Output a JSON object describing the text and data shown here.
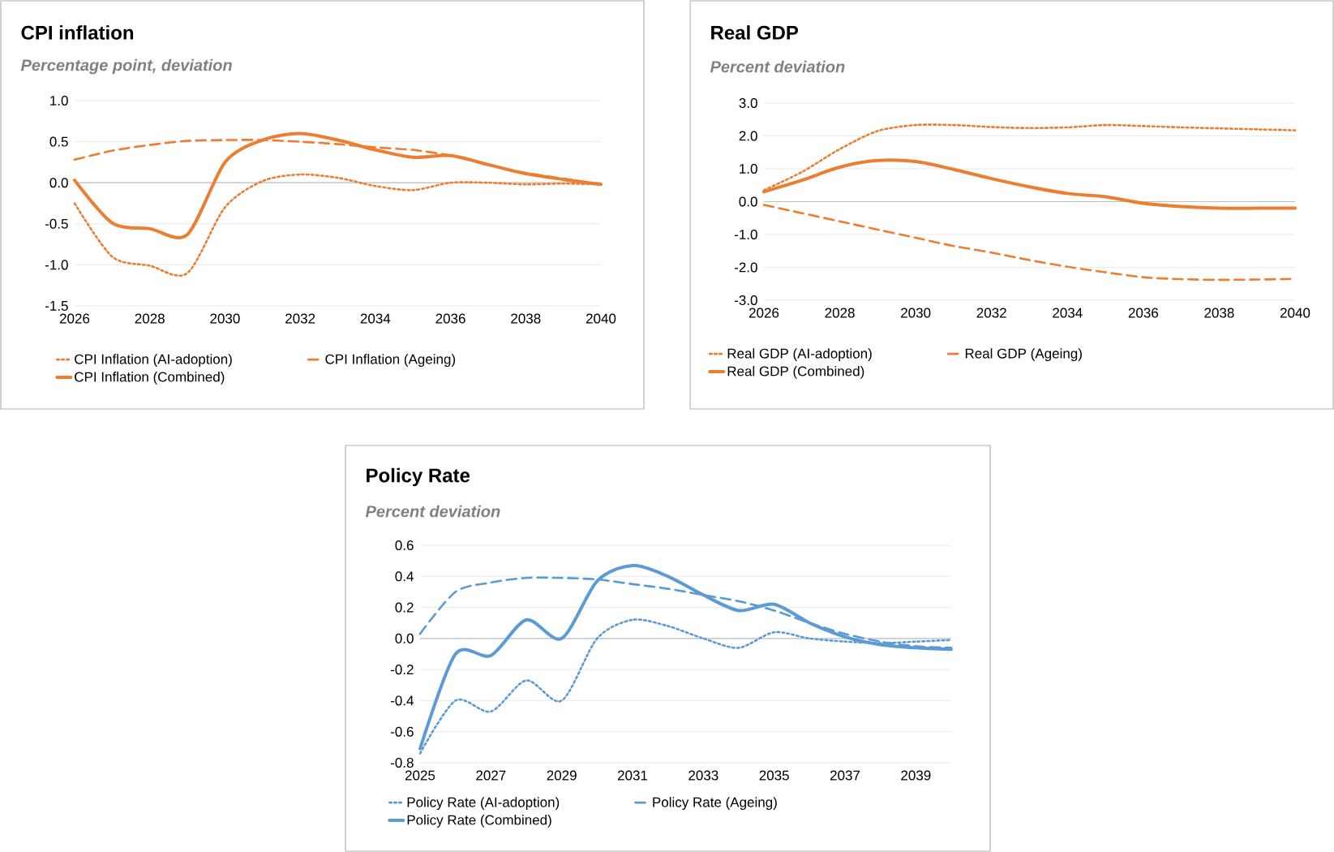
{
  "chart_data": [
    {
      "type": "line",
      "title": "CPI inflation",
      "subtitle": "Percentage point, deviation",
      "x": [
        2026,
        2027,
        2028,
        2029,
        2030,
        2031,
        2032,
        2033,
        2034,
        2035,
        2036,
        2037,
        2038,
        2039,
        2040
      ],
      "xlim": [
        2026,
        2040
      ],
      "xticks": [
        2026,
        2028,
        2030,
        2032,
        2034,
        2036,
        2038,
        2040
      ],
      "ylim": [
        -1.5,
        1.0
      ],
      "yticks": [
        {
          "value": -1.5,
          "label": "-1.5"
        },
        {
          "value": -1.0,
          "label": "-1.0"
        },
        {
          "value": -0.5,
          "label": "-0.5"
        },
        {
          "value": 0,
          "label": "0.0"
        },
        {
          "value": 0.5,
          "label": "0.5"
        },
        {
          "value": 1.0,
          "label": "1.0"
        }
      ],
      "grid": "y",
      "legend": "bottom",
      "series": [
        {
          "name": "CPI Inflation (AI-adoption)",
          "color": "#ed7d31",
          "line_style": "dotted",
          "values": [
            -0.25,
            -0.9,
            -1.01,
            -1.1,
            -0.3,
            0.02,
            0.1,
            0.06,
            -0.04,
            -0.09,
            0.0,
            0.0,
            -0.02,
            -0.01,
            -0.02
          ]
        },
        {
          "name": "CPI Inflation (Ageing)",
          "color": "#ed7d31",
          "line_style": "dashed",
          "values": [
            0.28,
            0.39,
            0.46,
            0.51,
            0.52,
            0.52,
            0.5,
            0.47,
            0.43,
            0.4,
            0.33,
            0.22,
            0.12,
            0.05,
            -0.02
          ]
        },
        {
          "name": "CPI Inflation (Combined)",
          "color": "#ed7d31",
          "line_style": "solid",
          "values": [
            0.03,
            -0.49,
            -0.56,
            -0.63,
            0.25,
            0.52,
            0.6,
            0.52,
            0.4,
            0.31,
            0.33,
            0.22,
            0.11,
            0.04,
            -0.02
          ]
        }
      ]
    },
    {
      "type": "line",
      "title": "Real GDP",
      "subtitle": "Percent deviation",
      "x": [
        2026,
        2027,
        2028,
        2029,
        2030,
        2031,
        2032,
        2033,
        2034,
        2035,
        2036,
        2037,
        2038,
        2039,
        2040
      ],
      "xlim": [
        2026,
        2040
      ],
      "xticks": [
        2026,
        2028,
        2030,
        2032,
        2034,
        2036,
        2038,
        2040
      ],
      "ylim": [
        -3.0,
        3.0
      ],
      "yticks": [
        {
          "value": -3,
          "label": "-3.0"
        },
        {
          "value": -2,
          "label": "-2.0"
        },
        {
          "value": -1,
          "label": "-1.0"
        },
        {
          "value": 0,
          "label": "0.0"
        },
        {
          "value": 1,
          "label": "1.0"
        },
        {
          "value": 2,
          "label": "2.0"
        },
        {
          "value": 3,
          "label": "3.0"
        }
      ],
      "grid": "y",
      "legend": "bottom",
      "series": [
        {
          "name": "Real GDP (AI-adoption)",
          "color": "#ed7d31",
          "line_style": "dotted",
          "values": [
            0.35,
            0.9,
            1.6,
            2.15,
            2.33,
            2.33,
            2.27,
            2.24,
            2.26,
            2.33,
            2.3,
            2.26,
            2.23,
            2.2,
            2.17
          ]
        },
        {
          "name": "Real GDP (Ageing)",
          "color": "#ed7d31",
          "line_style": "dashed",
          "values": [
            -0.1,
            -0.35,
            -0.6,
            -0.85,
            -1.1,
            -1.35,
            -1.55,
            -1.78,
            -1.98,
            -2.15,
            -2.3,
            -2.36,
            -2.38,
            -2.37,
            -2.35
          ]
        },
        {
          "name": "Real GDP (Combined)",
          "color": "#ed7d31",
          "line_style": "solid",
          "values": [
            0.3,
            0.65,
            1.05,
            1.25,
            1.22,
            0.98,
            0.7,
            0.45,
            0.25,
            0.15,
            -0.05,
            -0.15,
            -0.2,
            -0.2,
            -0.2
          ]
        }
      ]
    },
    {
      "type": "line",
      "title": "Policy Rate",
      "subtitle": "Percent deviation",
      "x": [
        2025,
        2026,
        2027,
        2028,
        2029,
        2030,
        2031,
        2032,
        2033,
        2034,
        2035,
        2036,
        2037,
        2038,
        2039,
        2040
      ],
      "xlim": [
        2025,
        2040
      ],
      "xticks": [
        2025,
        2027,
        2029,
        2031,
        2033,
        2035,
        2037,
        2039
      ],
      "ylim": [
        -0.8,
        0.6
      ],
      "yticks": [
        {
          "value": -0.8,
          "label": "-0.8"
        },
        {
          "value": -0.6,
          "label": "-0.6"
        },
        {
          "value": -0.4,
          "label": "-0.4"
        },
        {
          "value": -0.2,
          "label": "-0.2"
        },
        {
          "value": 0,
          "label": "0.0"
        },
        {
          "value": 0.2,
          "label": "0.2"
        },
        {
          "value": 0.4,
          "label": "0.4"
        },
        {
          "value": 0.6,
          "label": "0.6"
        }
      ],
      "grid": "y",
      "legend": "bottom",
      "series": [
        {
          "name": "Policy Rate (AI-adoption)",
          "color": "#5b9bd5",
          "line_style": "dotted",
          "values": [
            -0.74,
            -0.4,
            -0.47,
            -0.27,
            -0.4,
            0.0,
            0.12,
            0.08,
            0.0,
            -0.06,
            0.04,
            0.0,
            -0.02,
            -0.03,
            -0.02,
            -0.01
          ]
        },
        {
          "name": "Policy Rate (Ageing)",
          "color": "#5b9bd5",
          "line_style": "dashed",
          "values": [
            0.03,
            0.3,
            0.36,
            0.39,
            0.39,
            0.38,
            0.35,
            0.32,
            0.28,
            0.24,
            0.18,
            0.1,
            0.03,
            -0.02,
            -0.05,
            -0.06
          ]
        },
        {
          "name": "Policy Rate (Combined)",
          "color": "#5b9bd5",
          "line_style": "solid",
          "values": [
            -0.71,
            -0.1,
            -0.11,
            0.12,
            0.0,
            0.37,
            0.47,
            0.4,
            0.28,
            0.18,
            0.22,
            0.1,
            0.01,
            -0.04,
            -0.06,
            -0.07
          ]
        }
      ]
    }
  ]
}
